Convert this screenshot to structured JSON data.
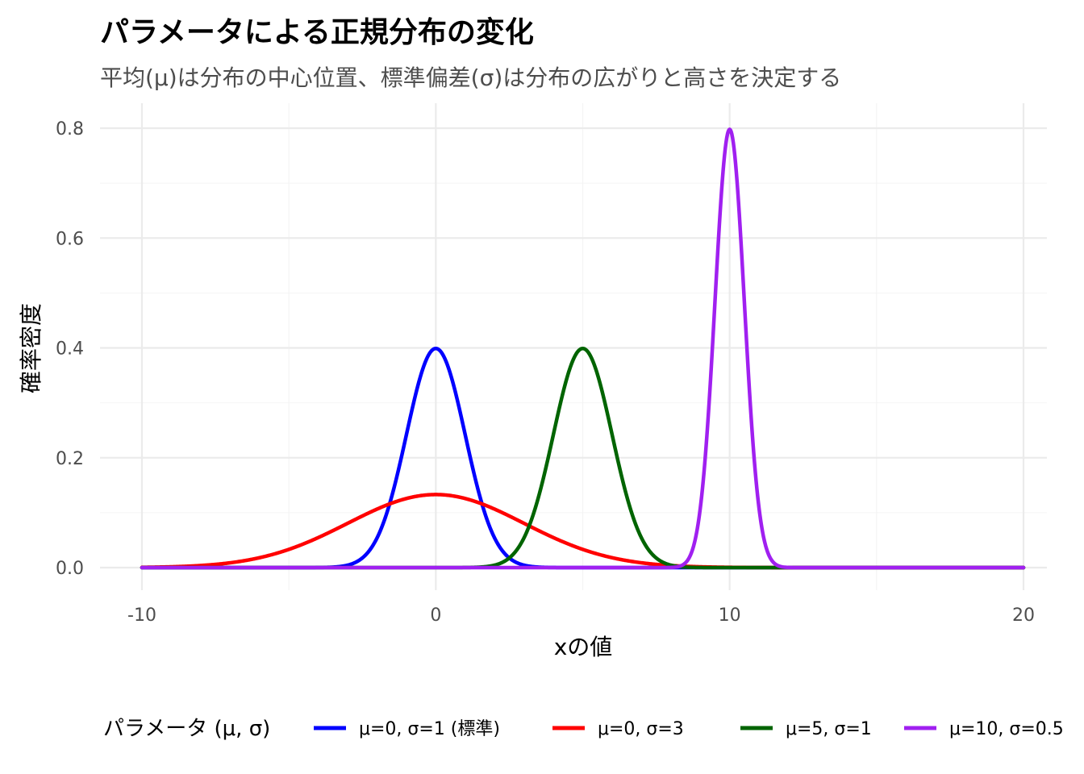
{
  "chart_data": {
    "type": "line",
    "title": "パラメータによる正規分布の変化",
    "subtitle": "平均(μ)は分布の中心位置、標準偏差(σ)は分布の広がりと高さを決定する",
    "xlabel": "xの値",
    "ylabel": "確率密度",
    "xlim": [
      -10,
      20
    ],
    "ylim": [
      0,
      0.8
    ],
    "x_ticks": [
      -10,
      0,
      10,
      20
    ],
    "x_tick_labels": [
      "-10",
      "0",
      "10",
      "20"
    ],
    "y_ticks": [
      0.0,
      0.2,
      0.4,
      0.6,
      0.8
    ],
    "y_tick_labels": [
      "0.0",
      "0.2",
      "0.4",
      "0.6",
      "0.8"
    ],
    "grid": true,
    "legend": {
      "title": "パラメータ (μ, σ)",
      "position": "bottom"
    },
    "series": [
      {
        "name": "μ=0, σ=1 (標準)",
        "mu": 0,
        "sigma": 1,
        "color": "#0000ff",
        "x": [
          -10,
          -3,
          -2,
          -1,
          0,
          1,
          2,
          3,
          20
        ],
        "y": [
          0.0,
          0.004,
          0.054,
          0.242,
          0.399,
          0.242,
          0.054,
          0.004,
          0.0
        ]
      },
      {
        "name": "μ=0, σ=3",
        "mu": 0,
        "sigma": 3,
        "color": "#ff0000",
        "x": [
          -10,
          -6,
          -4,
          -2,
          0,
          2,
          4,
          6,
          10,
          20
        ],
        "y": [
          0.001,
          0.018,
          0.055,
          0.106,
          0.133,
          0.106,
          0.055,
          0.018,
          0.001,
          0.0
        ]
      },
      {
        "name": "μ=5, σ=1",
        "mu": 5,
        "sigma": 1,
        "color": "#006400",
        "x": [
          -10,
          2,
          3,
          4,
          5,
          6,
          7,
          8,
          20
        ],
        "y": [
          0.0,
          0.004,
          0.054,
          0.242,
          0.399,
          0.242,
          0.054,
          0.004,
          0.0
        ]
      },
      {
        "name": "μ=10, σ=0.5",
        "mu": 10,
        "sigma": 0.5,
        "color": "#a020f0",
        "x": [
          -10,
          8.5,
          9,
          9.5,
          10,
          10.5,
          11,
          11.5,
          20
        ],
        "y": [
          0.0,
          0.009,
          0.108,
          0.484,
          0.798,
          0.484,
          0.108,
          0.009,
          0.0
        ]
      }
    ]
  }
}
